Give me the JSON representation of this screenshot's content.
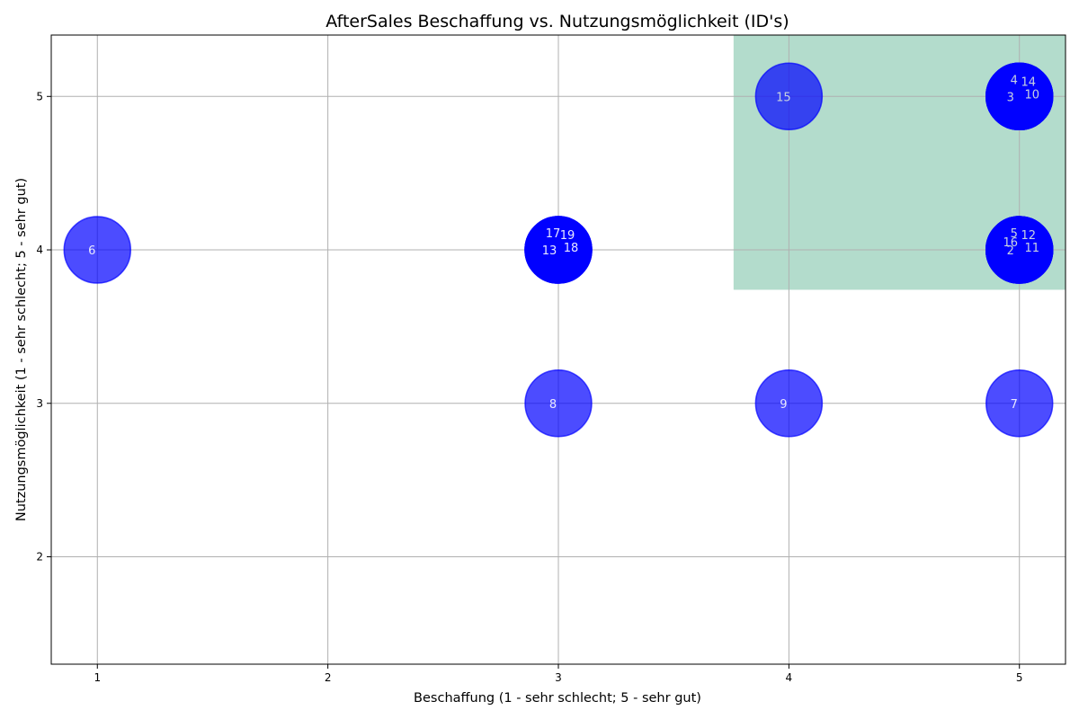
{
  "chart_data": {
    "type": "scatter",
    "title": "AfterSales Beschaffung vs. Nutzungsmöglichkeit (ID's)",
    "xlabel": "Beschaffung (1 - sehr schlecht; 5 - sehr gut)",
    "ylabel": "Nutzungsmöglichkeit (1 - sehr schlecht; 5 - sehr gut)",
    "xlim": [
      0.8,
      5.2
    ],
    "ylim": [
      1.3,
      5.4
    ],
    "xticks": [
      "1",
      "2",
      "3",
      "4",
      "5"
    ],
    "yticks": [
      "2",
      "3",
      "4",
      "5"
    ],
    "grid": true,
    "highlight_region": {
      "x": [
        3.76,
        5.2
      ],
      "y": [
        3.74,
        5.4
      ],
      "color": "#b3dccc"
    },
    "point_color": "#0000ff",
    "point_alpha": 0.7,
    "points": [
      {
        "id": "2",
        "x": 5,
        "y": 4
      },
      {
        "id": "3",
        "x": 5,
        "y": 5
      },
      {
        "id": "4",
        "x": 5,
        "y": 5
      },
      {
        "id": "5",
        "x": 5,
        "y": 4
      },
      {
        "id": "6",
        "x": 1,
        "y": 4
      },
      {
        "id": "7",
        "x": 5,
        "y": 3
      },
      {
        "id": "8",
        "x": 3,
        "y": 3
      },
      {
        "id": "9",
        "x": 4,
        "y": 3
      },
      {
        "id": "10",
        "x": 5,
        "y": 5
      },
      {
        "id": "11",
        "x": 5,
        "y": 4
      },
      {
        "id": "12",
        "x": 5,
        "y": 4
      },
      {
        "id": "13",
        "x": 3,
        "y": 4
      },
      {
        "id": "14",
        "x": 5,
        "y": 5
      },
      {
        "id": "15",
        "x": 4,
        "y": 5
      },
      {
        "id": "16",
        "x": 5,
        "y": 4
      },
      {
        "id": "17",
        "x": 3,
        "y": 4
      },
      {
        "id": "18",
        "x": 3,
        "y": 4
      },
      {
        "id": "19",
        "x": 3,
        "y": 4
      }
    ]
  }
}
